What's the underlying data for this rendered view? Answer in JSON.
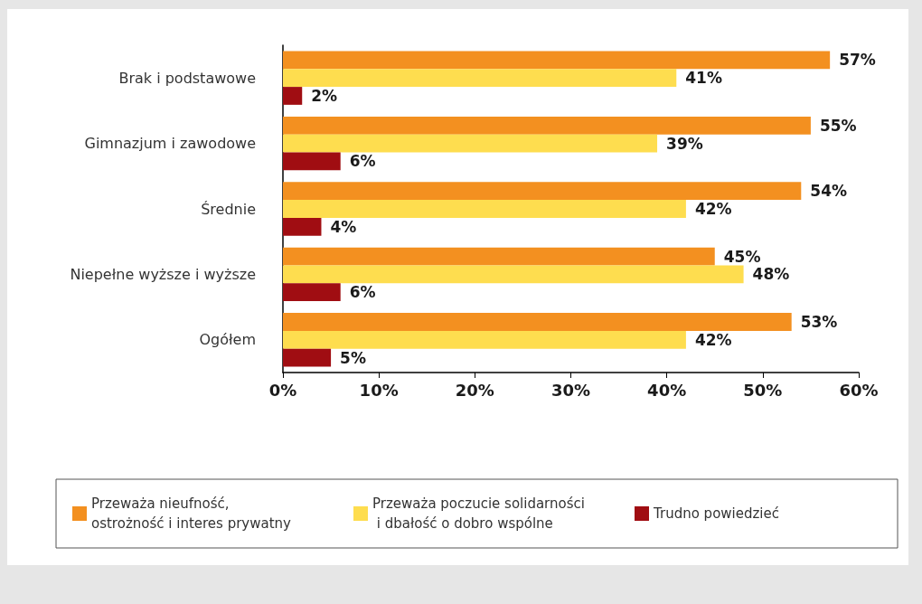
{
  "chart_data": {
    "type": "bar",
    "orientation": "horizontal",
    "categories": [
      "Brak i podstawowe",
      "Gimnazjum i zawodowe",
      "Średnie",
      "Niepełne wyższe i wyższe",
      "Ogółem"
    ],
    "series": [
      {
        "name": "Przeważa nieufność, ostrożność i interes prywatny",
        "color": "#f39020",
        "values": [
          57,
          55,
          54,
          45,
          53
        ],
        "value_labels": [
          "57%",
          "55%",
          "54%",
          "45%",
          "53%"
        ]
      },
      {
        "name": "Przeważa poczucie solidarności i dbałość o dobro wspólne",
        "color": "#fedd4f",
        "values": [
          41,
          39,
          42,
          48,
          42
        ],
        "value_labels": [
          "41%",
          "39%",
          "42%",
          "48%",
          "42%"
        ]
      },
      {
        "name": "Trudno powiedzieć",
        "color": "#a00d12",
        "values": [
          2,
          6,
          4,
          6,
          5
        ],
        "value_labels": [
          "2%",
          "6%",
          "4%",
          "6%",
          "5%"
        ]
      }
    ],
    "xlim": [
      0,
      60
    ],
    "xticks": [
      {
        "value": 0,
        "label": "0%"
      },
      {
        "value": 10,
        "label": "10%"
      },
      {
        "value": 20,
        "label": "20%"
      },
      {
        "value": 30,
        "label": "30%"
      },
      {
        "value": 40,
        "label": "40%"
      },
      {
        "value": 50,
        "label": "50%"
      },
      {
        "value": 60,
        "label": "60%"
      }
    ],
    "grid": false,
    "legend": "bottom"
  }
}
